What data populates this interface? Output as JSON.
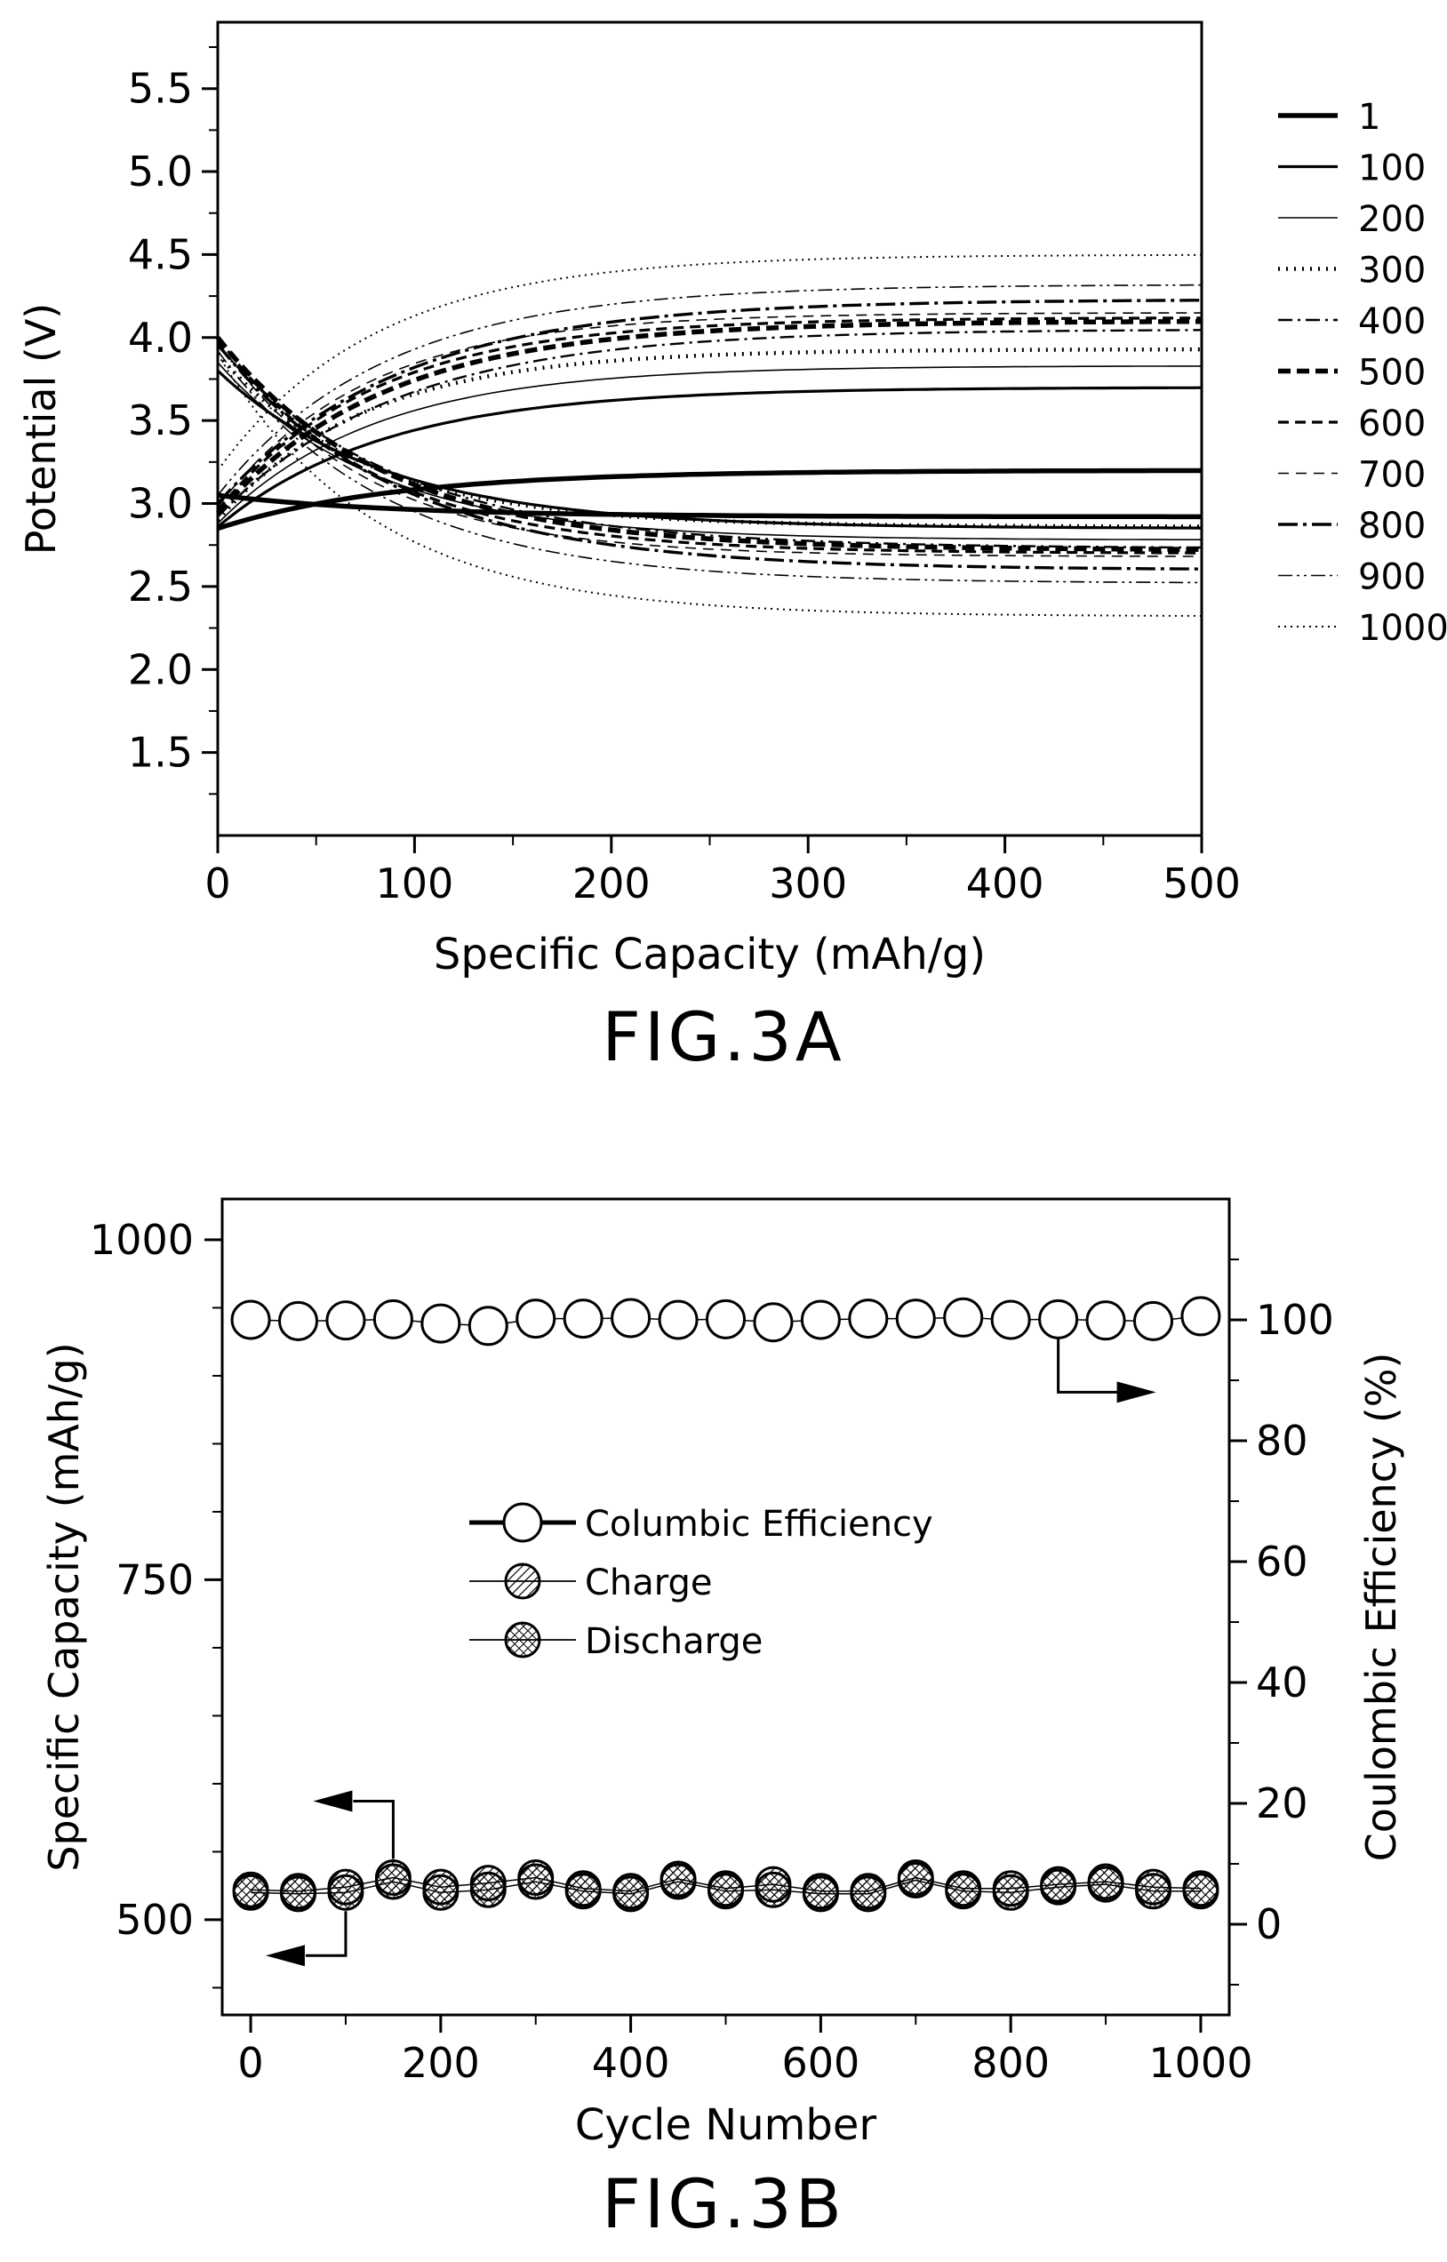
{
  "chart_data": [
    {
      "type": "line",
      "caption": "FIG.3A",
      "xlabel": "Specific Capacity (mAh/g)",
      "ylabel": "Potential (V)",
      "xlim": [
        0,
        500
      ],
      "ylim": [
        1.0,
        5.9
      ],
      "x_ticks": [
        "0",
        "100",
        "200",
        "300",
        "400",
        "500"
      ],
      "y_ticks": [
        "1.5",
        "2.0",
        "2.5",
        "3.0",
        "3.5",
        "4.0",
        "4.5",
        "5.0",
        "5.5"
      ],
      "legend_position": "right",
      "series": [
        {
          "name": "1",
          "style": "thick-solid",
          "charge": {
            "start": 2.85,
            "end": 3.2
          },
          "discharge": {
            "start": 3.05,
            "end": 2.92
          }
        },
        {
          "name": "100",
          "style": "solid",
          "charge": {
            "start": 2.86,
            "end": 3.7
          },
          "discharge": {
            "start": 3.8,
            "end": 2.85
          }
        },
        {
          "name": "200",
          "style": "thin-solid",
          "charge": {
            "start": 2.88,
            "end": 3.83
          },
          "discharge": {
            "start": 3.85,
            "end": 2.78
          }
        },
        {
          "name": "300",
          "style": "dotted-bold",
          "charge": {
            "start": 2.9,
            "end": 3.93
          },
          "discharge": {
            "start": 3.9,
            "end": 2.86
          }
        },
        {
          "name": "400",
          "style": "dash-dot",
          "charge": {
            "start": 2.92,
            "end": 4.05
          },
          "discharge": {
            "start": 3.95,
            "end": 2.73
          }
        },
        {
          "name": "500",
          "style": "thick-dash",
          "charge": {
            "start": 2.94,
            "end": 4.1
          },
          "discharge": {
            "start": 4.0,
            "end": 2.72
          }
        },
        {
          "name": "600",
          "style": "dash",
          "charge": {
            "start": 2.96,
            "end": 4.12
          },
          "discharge": {
            "start": 4.0,
            "end": 2.7
          }
        },
        {
          "name": "700",
          "style": "thin-dash",
          "charge": {
            "start": 2.98,
            "end": 4.15
          },
          "discharge": {
            "start": 3.98,
            "end": 2.68
          }
        },
        {
          "name": "800",
          "style": "long-dash-dot",
          "charge": {
            "start": 3.0,
            "end": 4.23
          },
          "discharge": {
            "start": 3.96,
            "end": 2.6
          }
        },
        {
          "name": "900",
          "style": "dash-dot-dot",
          "charge": {
            "start": 3.05,
            "end": 4.32
          },
          "discharge": {
            "start": 3.92,
            "end": 2.52
          }
        },
        {
          "name": "1000",
          "style": "thin-dotted",
          "charge": {
            "start": 3.2,
            "end": 4.5
          },
          "discharge": {
            "start": 3.9,
            "end": 2.32
          }
        }
      ]
    },
    {
      "type": "scatter",
      "caption": "FIG.3B",
      "xlabel": "Cycle Number",
      "ylabel": "Specific Capacity (mAh/g)",
      "y2label": "Coulombic Efficiency (%)",
      "xlim": [
        -30,
        1030
      ],
      "ylim": [
        430,
        1030
      ],
      "y2lim": [
        -15,
        120
      ],
      "x_ticks": [
        "0",
        "200",
        "400",
        "600",
        "800",
        "1000"
      ],
      "y_ticks": [
        "500",
        "750",
        "1000"
      ],
      "y2_ticks": [
        "0",
        "20",
        "40",
        "60",
        "80",
        "100"
      ],
      "legend_position": "center-left",
      "x": [
        0,
        50,
        100,
        150,
        200,
        250,
        300,
        350,
        400,
        450,
        500,
        550,
        600,
        650,
        700,
        750,
        800,
        850,
        900,
        950,
        1000
      ],
      "series": [
        {
          "name": "Columbic Efficiency",
          "axis": "right",
          "marker": "open-circle",
          "values": [
            100.0,
            99.8,
            99.9,
            100.1,
            99.4,
            99.0,
            100.2,
            100.2,
            100.3,
            100.0,
            100.1,
            99.6,
            100.0,
            100.2,
            100.2,
            100.4,
            100.0,
            100.1,
            99.9,
            99.8,
            100.6
          ]
        },
        {
          "name": "Charge",
          "axis": "left",
          "marker": "hatched-circle",
          "values": [
            522,
            521,
            524,
            531,
            524,
            527,
            531,
            523,
            521,
            530,
            523,
            526,
            521,
            521,
            531,
            523,
            523,
            526,
            528,
            524,
            523
          ]
        },
        {
          "name": "Discharge",
          "axis": "left",
          "marker": "crosshatched-circle",
          "values": [
            520,
            519,
            520,
            528,
            520,
            522,
            528,
            521,
            519,
            528,
            521,
            522,
            519,
            519,
            529,
            521,
            520,
            524,
            526,
            521,
            521
          ]
        }
      ]
    }
  ]
}
